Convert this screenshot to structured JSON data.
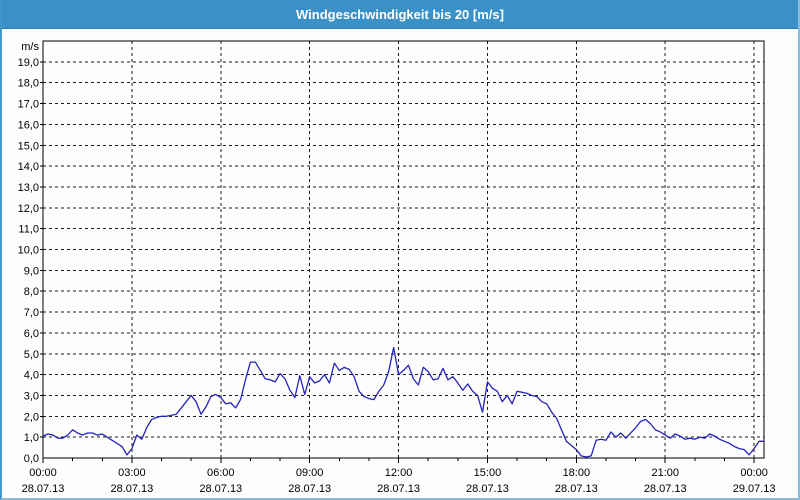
{
  "window": {
    "title": "Windgeschwindigkeit bis 20 [m/s]"
  },
  "chart_data": {
    "type": "line",
    "title": "Windgeschwindigkeit bis 20 [m/s]",
    "unit_label": "m/s",
    "ylim": [
      0,
      20
    ],
    "y_tick_step": 1,
    "grid": "dashed",
    "legend": "none",
    "y_tick_labels": [
      "19,0",
      "18,0",
      "17,0",
      "16,0",
      "15,0",
      "14,0",
      "13,0",
      "12,0",
      "11,0",
      "10,0",
      "9,0",
      "8,0",
      "7,0",
      "6,0",
      "5,0",
      "4,0",
      "3,0",
      "2,0",
      "1,0",
      "0,0"
    ],
    "x_ticks": [
      {
        "time": "00:00",
        "date": "28.07.13"
      },
      {
        "time": "03:00",
        "date": "28.07.13"
      },
      {
        "time": "06:00",
        "date": "28.07.13"
      },
      {
        "time": "09:00",
        "date": "28.07.13"
      },
      {
        "time": "12:00",
        "date": "28.07.13"
      },
      {
        "time": "15:00",
        "date": "28.07.13"
      },
      {
        "time": "18:00",
        "date": "28.07.13"
      },
      {
        "time": "21:00",
        "date": "28.07.13"
      },
      {
        "time": "00:00",
        "date": "29.07.13"
      }
    ],
    "x_major_tick_hours": 3,
    "x_minor_tick_hours": 1,
    "x_total_minutes": 1460,
    "sample_interval_minutes": 10,
    "series": [
      {
        "name": "Windgeschwindigkeit",
        "color": "#2424bd",
        "values": [
          1.05,
          1.15,
          1.1,
          0.95,
          0.95,
          1.1,
          1.35,
          1.2,
          1.1,
          1.2,
          1.2,
          1.1,
          1.15,
          1.0,
          0.85,
          0.7,
          0.55,
          0.15,
          0.45,
          1.1,
          0.9,
          1.45,
          1.85,
          1.95,
          2.0,
          2.0,
          2.05,
          2.1,
          2.4,
          2.7,
          3.0,
          2.7,
          2.1,
          2.45,
          2.95,
          3.05,
          2.9,
          2.6,
          2.65,
          2.4,
          2.8,
          3.75,
          4.6,
          4.6,
          4.2,
          3.8,
          3.75,
          3.65,
          4.05,
          3.8,
          3.25,
          2.9,
          3.95,
          3.05,
          3.9,
          3.6,
          3.7,
          4.0,
          3.6,
          4.55,
          4.2,
          4.35,
          4.25,
          3.9,
          3.2,
          2.95,
          2.85,
          2.8,
          3.2,
          3.5,
          4.15,
          5.3,
          4.0,
          4.2,
          4.45,
          3.8,
          3.5,
          4.35,
          4.15,
          3.75,
          3.8,
          4.3,
          3.75,
          3.9,
          3.6,
          3.25,
          3.55,
          3.2,
          3.0,
          2.2,
          3.65,
          3.35,
          3.2,
          2.7,
          3.0,
          2.6,
          3.2,
          3.15,
          3.1,
          3.0,
          2.95,
          2.7,
          2.6,
          2.2,
          1.9,
          1.35,
          0.8,
          0.6,
          0.4,
          0.1,
          0.05,
          0.1,
          0.85,
          0.9,
          0.85,
          1.25,
          1.0,
          1.2,
          0.95,
          1.2,
          1.45,
          1.75,
          1.85,
          1.65,
          1.35,
          1.25,
          1.1,
          0.95,
          1.15,
          1.05,
          0.9,
          0.95,
          0.9,
          1.0,
          0.95,
          1.15,
          1.05,
          0.9,
          0.8,
          0.7,
          0.55,
          0.45,
          0.4,
          0.15,
          0.45,
          0.8,
          0.8,
          0.8
        ]
      }
    ]
  }
}
